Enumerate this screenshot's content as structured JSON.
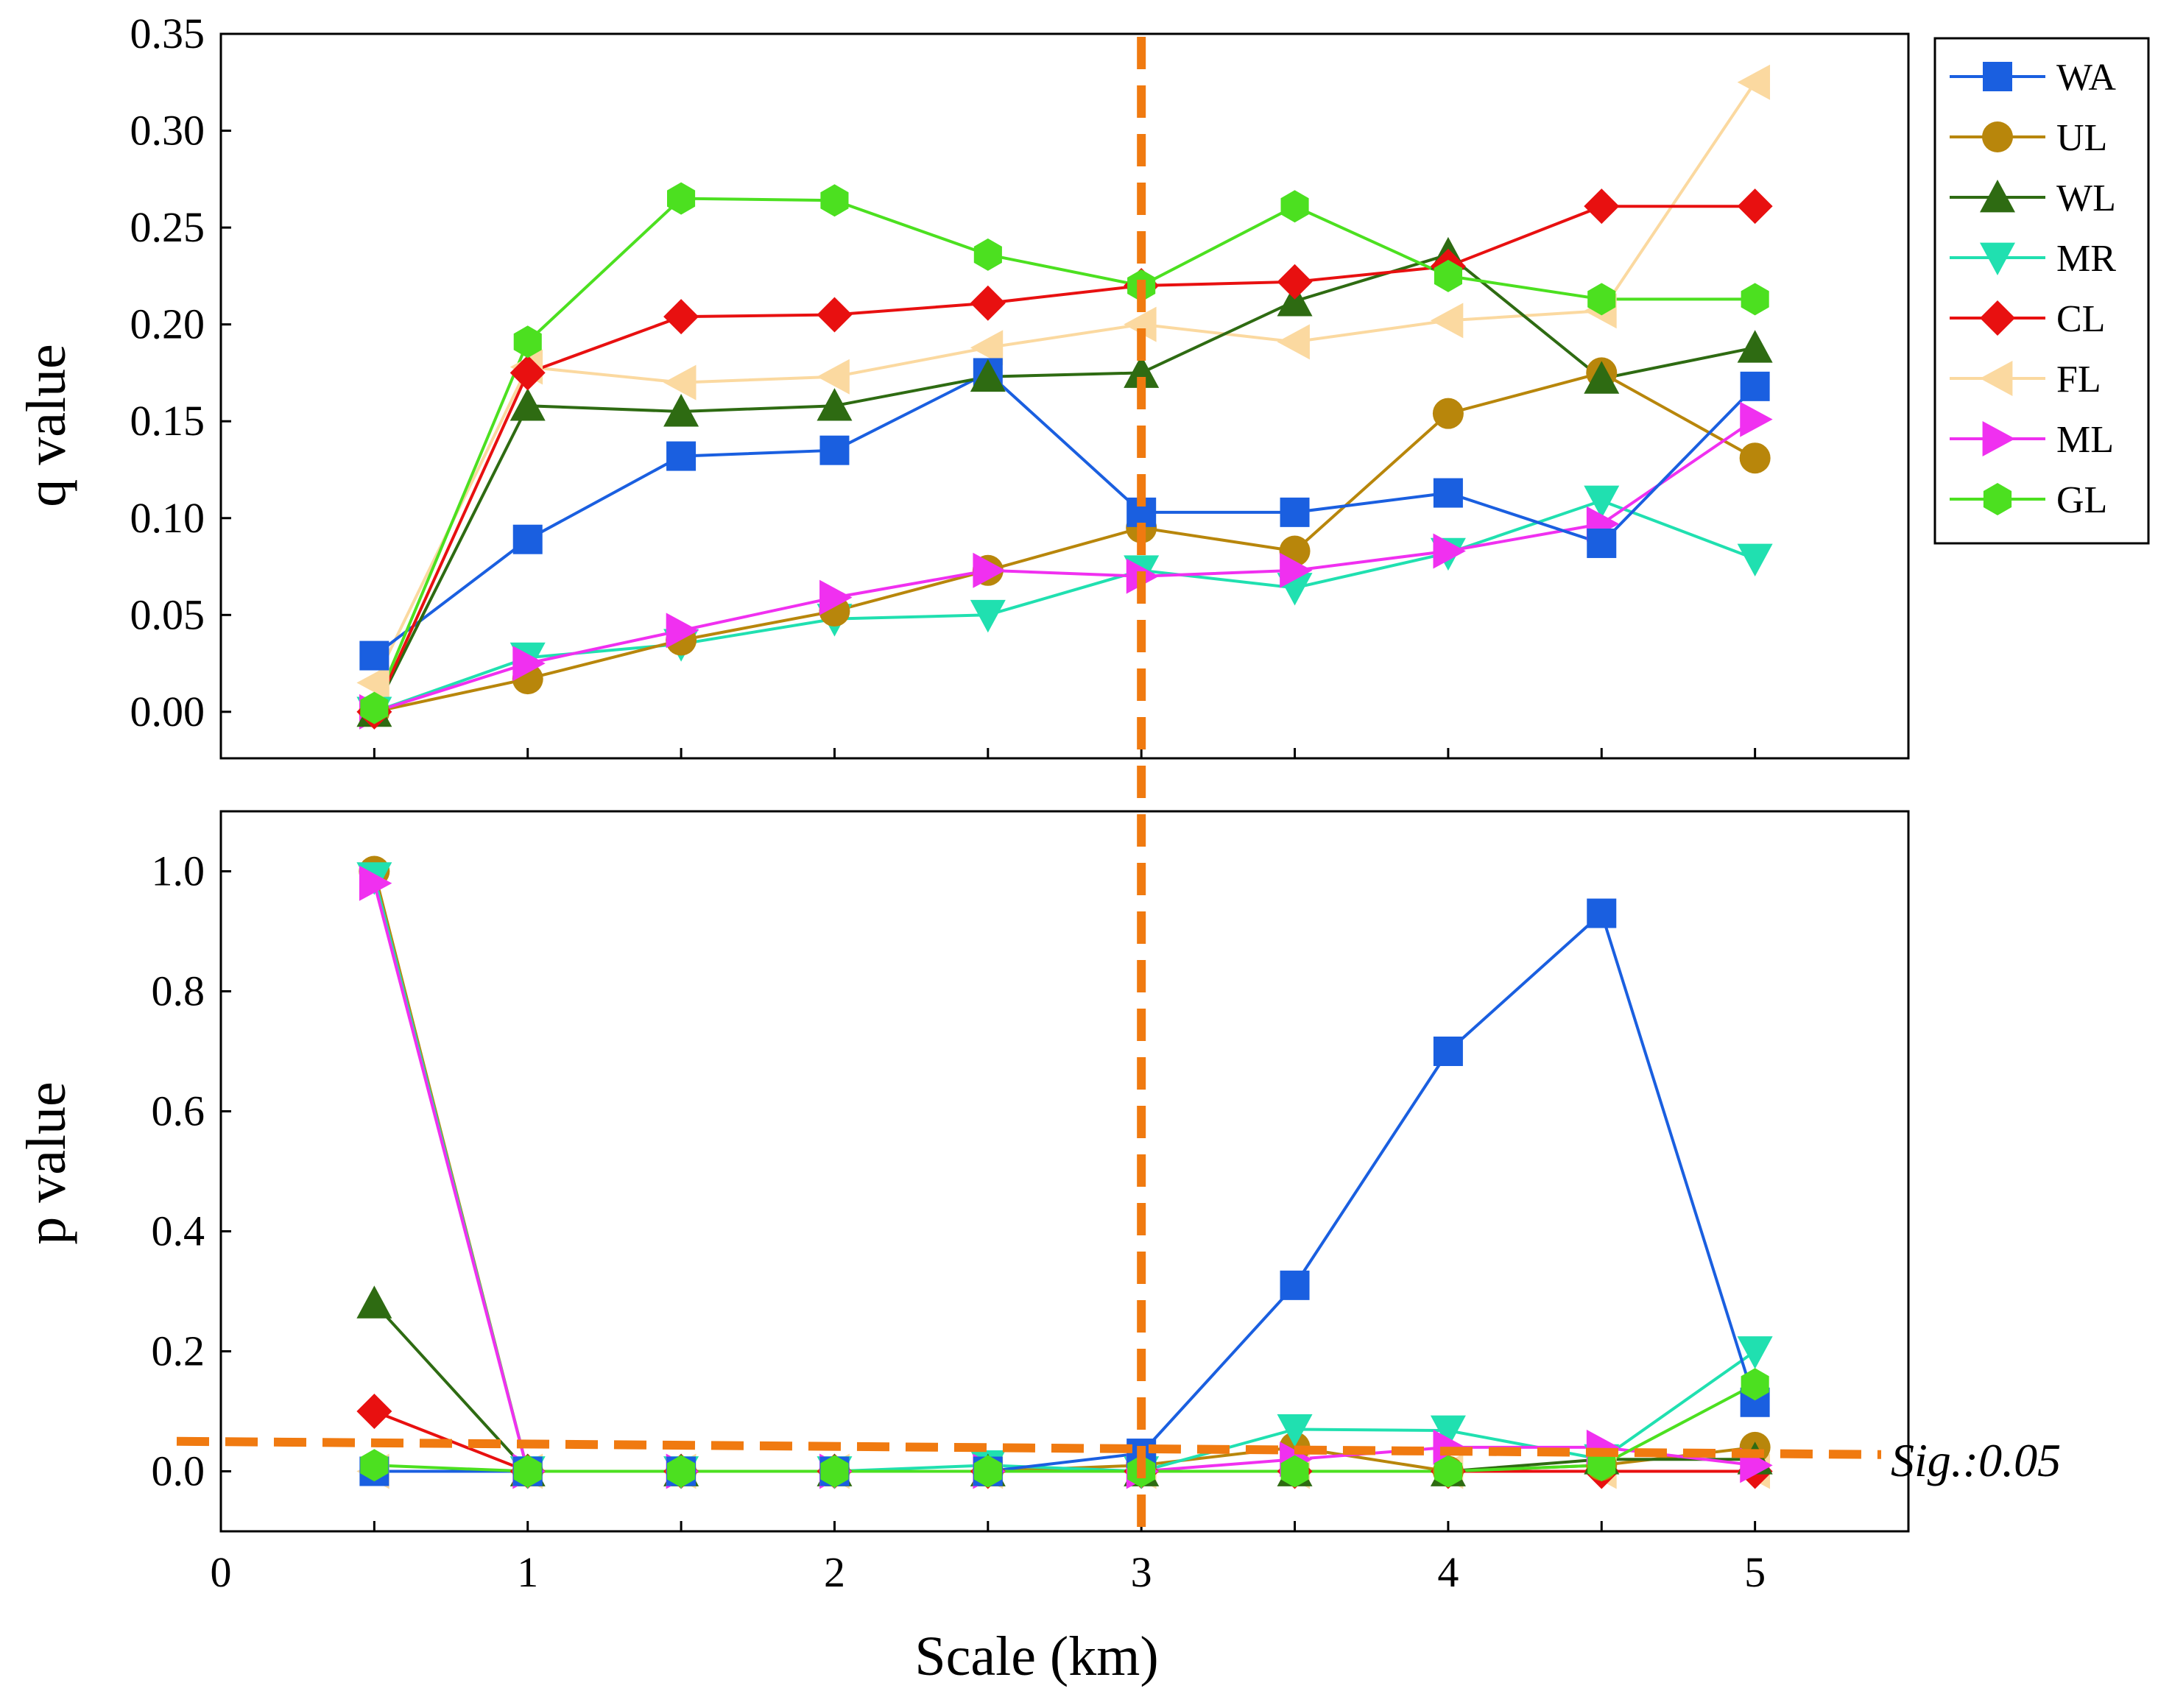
{
  "chart_data": {
    "type": "line",
    "x": [
      0.5,
      1,
      1.5,
      2,
      2.5,
      3,
      3.5,
      4,
      4.5,
      5
    ],
    "xlabel": "Scale (km)",
    "xlim": [
      0,
      5.5
    ],
    "xticks": [
      "0",
      "1",
      "2",
      "3",
      "4",
      "5"
    ],
    "xtick_values": [
      0,
      1,
      2,
      3,
      4,
      5
    ],
    "legend_position": "top-right",
    "reference_line_x": 3,
    "panels": [
      {
        "name": "q-panel",
        "ylabel": "q value",
        "ylim": [
          -0.024,
          0.35
        ],
        "yticks": [
          "0.00",
          "0.05",
          "0.10",
          "0.15",
          "0.20",
          "0.25",
          "0.30",
          "0.35"
        ],
        "ytick_values": [
          0,
          0.05,
          0.1,
          0.15,
          0.2,
          0.25,
          0.3,
          0.35
        ],
        "series": [
          {
            "name": "FL",
            "values": [
              0.015,
              0.178,
              0.17,
              0.173,
              0.188,
              0.2,
              0.191,
              0.202,
              0.207,
              0.325
            ]
          },
          {
            "name": "MR",
            "values": [
              0.0,
              0.028,
              0.035,
              0.048,
              0.05,
              0.073,
              0.064,
              0.082,
              0.109,
              0.079
            ]
          },
          {
            "name": "UL",
            "values": [
              0.0,
              0.017,
              0.037,
              0.052,
              0.073,
              0.095,
              0.083,
              0.154,
              0.175,
              0.131
            ]
          },
          {
            "name": "ML",
            "values": [
              0.0,
              0.025,
              0.042,
              0.059,
              0.073,
              0.07,
              0.073,
              0.083,
              0.097,
              0.151
            ]
          },
          {
            "name": "WA",
            "values": [
              0.029,
              0.089,
              0.132,
              0.135,
              0.175,
              0.103,
              0.103,
              0.113,
              0.087,
              0.168
            ]
          },
          {
            "name": "WL",
            "values": [
              0.0,
              0.158,
              0.155,
              0.158,
              0.173,
              0.175,
              0.212,
              0.236,
              0.172,
              0.188
            ]
          },
          {
            "name": "CL",
            "values": [
              0.0,
              0.175,
              0.204,
              0.205,
              0.211,
              0.22,
              0.222,
              0.23,
              0.261,
              0.261
            ]
          },
          {
            "name": "GL",
            "values": [
              0.002,
              0.191,
              0.265,
              0.264,
              0.236,
              0.22,
              0.261,
              0.225,
              0.213,
              0.213
            ]
          }
        ]
      },
      {
        "name": "p-panel",
        "ylabel": "p value",
        "ylim": [
          -0.1,
          1.1
        ],
        "yticks": [
          "0.0",
          "0.2",
          "0.4",
          "0.6",
          "0.8",
          "1.0"
        ],
        "ytick_values": [
          0,
          0.2,
          0.4,
          0.6,
          0.8,
          1.0
        ],
        "sig_line": {
          "value": 0.05,
          "label": "Sig.:0.05"
        },
        "series": [
          {
            "name": "FL",
            "values": [
              0.0,
              0.0,
              0.0,
              0.0,
              0.0,
              0.0,
              0.0,
              0.0,
              0.0,
              0.0
            ]
          },
          {
            "name": "CL",
            "values": [
              0.1,
              0.0,
              0.0,
              0.0,
              0.0,
              0.0,
              0.0,
              0.0,
              0.0,
              0.0
            ]
          },
          {
            "name": "UL",
            "values": [
              1.0,
              0.0,
              0.0,
              0.0,
              0.0,
              0.01,
              0.04,
              0.0,
              0.01,
              0.04
            ]
          },
          {
            "name": "MR",
            "values": [
              0.99,
              0.0,
              0.0,
              0.0,
              0.01,
              0.0,
              0.07,
              0.068,
              0.02,
              0.2
            ]
          },
          {
            "name": "WL",
            "values": [
              0.28,
              0.0,
              0.0,
              0.0,
              0.0,
              0.0,
              0.0,
              0.0,
              0.02,
              0.02
            ]
          },
          {
            "name": "ML",
            "values": [
              0.98,
              0.0,
              0.0,
              0.0,
              0.0,
              0.0,
              0.02,
              0.04,
              0.04,
              0.01
            ]
          },
          {
            "name": "WA",
            "values": [
              0.0,
              0.0,
              0.0,
              0.0,
              0.0,
              0.03,
              0.31,
              0.7,
              0.93,
              0.115
            ]
          },
          {
            "name": "GL",
            "values": [
              0.01,
              0.0,
              0.0,
              0.0,
              0.0,
              0.0,
              0.0,
              0.0,
              0.01,
              0.145
            ]
          }
        ]
      }
    ],
    "legend": [
      {
        "name": "WA",
        "color": "#1a5fe0",
        "marker": "square"
      },
      {
        "name": "UL",
        "color": "#b8860b",
        "marker": "circle"
      },
      {
        "name": "WL",
        "color": "#2e6b12",
        "marker": "triangle-up"
      },
      {
        "name": "MR",
        "color": "#20e0b0",
        "marker": "triangle-down"
      },
      {
        "name": "CL",
        "color": "#e81010",
        "marker": "diamond"
      },
      {
        "name": "FL",
        "color": "#fbd9a0",
        "marker": "triangle-left"
      },
      {
        "name": "ML",
        "color": "#f030f0",
        "marker": "triangle-right"
      },
      {
        "name": "GL",
        "color": "#4ce020",
        "marker": "hexagon"
      }
    ],
    "reference_color": "#f07a10"
  }
}
